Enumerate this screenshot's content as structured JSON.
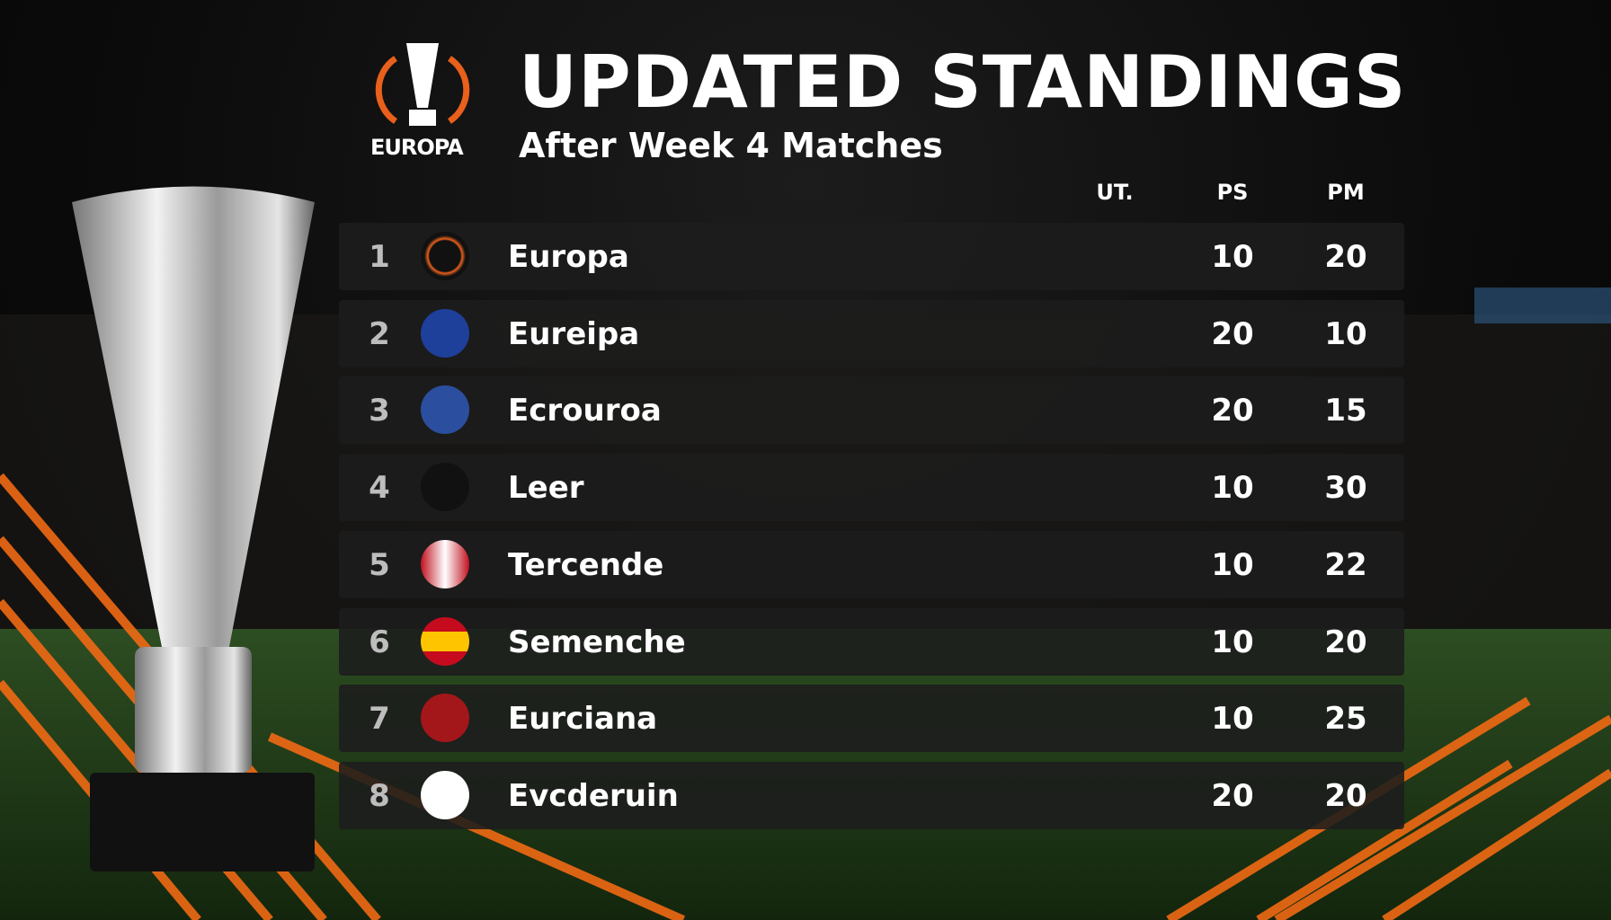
{
  "header": {
    "logo_text": "EUROPA",
    "title": "UPDATED STANDINGS",
    "subtitle": "After Week 4 Matches"
  },
  "table": {
    "columns": [
      "UT.",
      "PS",
      "PM"
    ],
    "rows": [
      [
        1,
        "Europa",
        10,
        20
      ],
      [
        2,
        "Eureipa",
        20,
        10
      ],
      [
        3,
        "Ecrouroa",
        20,
        15
      ],
      [
        4,
        "Leer",
        10,
        30
      ],
      [
        5,
        "Tercende",
        10,
        22
      ],
      [
        6,
        "Semenche",
        10,
        20
      ],
      [
        7,
        "Eurciana",
        10,
        25
      ],
      [
        8,
        "Evcderuin",
        20,
        20
      ]
    ]
  }
}
